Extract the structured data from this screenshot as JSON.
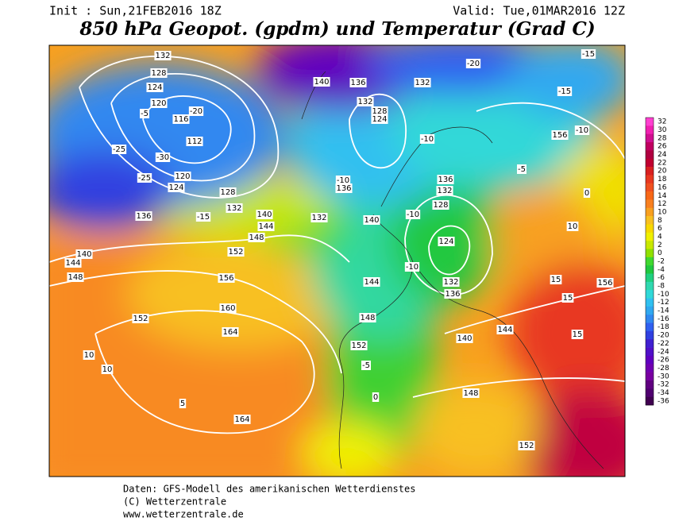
{
  "header": {
    "init": "Init : Sun,21FEB2016 18Z",
    "valid": "Valid: Tue,01MAR2016 12Z",
    "title": "850 hPa Geopot. (gpdm) und Temperatur (Grad C)"
  },
  "colorbar": {
    "values": [
      32,
      30,
      28,
      26,
      24,
      22,
      20,
      18,
      16,
      14,
      12,
      10,
      8,
      6,
      4,
      2,
      0,
      -2,
      -4,
      -6,
      -8,
      -10,
      -12,
      -14,
      -16,
      -18,
      -20,
      -22,
      -24,
      -26,
      -28,
      -30,
      -32,
      -34,
      -36
    ],
    "colors": [
      "#ff40d0",
      "#f020b0",
      "#d01090",
      "#c00060",
      "#b00040",
      "#c00030",
      "#d82020",
      "#e83820",
      "#f05020",
      "#f86818",
      "#f88020",
      "#f8a020",
      "#f8c020",
      "#f8d800",
      "#f0f000",
      "#c8e800",
      "#90e000",
      "#40d830",
      "#20c840",
      "#20d080",
      "#30d8b0",
      "#30d8d8",
      "#30c0f0",
      "#30a8f0",
      "#3088f0",
      "#3060f0",
      "#3040e0",
      "#4020d0",
      "#5010c8",
      "#6000c0",
      "#7000b0",
      "#7800a0",
      "#600080",
      "#500070",
      "#400050"
    ]
  },
  "map_labels": [
    "132",
    "128",
    "124",
    "120",
    "116",
    "112",
    "-5",
    "-20",
    "-25",
    "-30",
    "-25",
    "120",
    "124",
    "128",
    "132",
    "136",
    "-15",
    "140",
    "144",
    "148",
    "152",
    "140",
    "144",
    "148",
    "156",
    "160",
    "152",
    "164",
    "10",
    "10",
    "5",
    "164",
    "140",
    "136",
    "132",
    "128",
    "124",
    "-10",
    "136",
    "132",
    "140",
    "144",
    "148",
    "152",
    "-5",
    "0",
    "152",
    "156",
    "156",
    "-15",
    "-15",
    "-20",
    "132",
    "136",
    "132",
    "128",
    "124",
    "132",
    "136",
    "140",
    "144",
    "148",
    "15",
    "15",
    "15",
    "10",
    "-10",
    "-5",
    "0",
    "-10",
    "-10",
    "-10"
  ],
  "footer": [
    "Daten: GFS-Modell des amerikanischen Wetterdienstes",
    "(C) Wetterzentrale",
    "www.wetterzentrale.de"
  ]
}
